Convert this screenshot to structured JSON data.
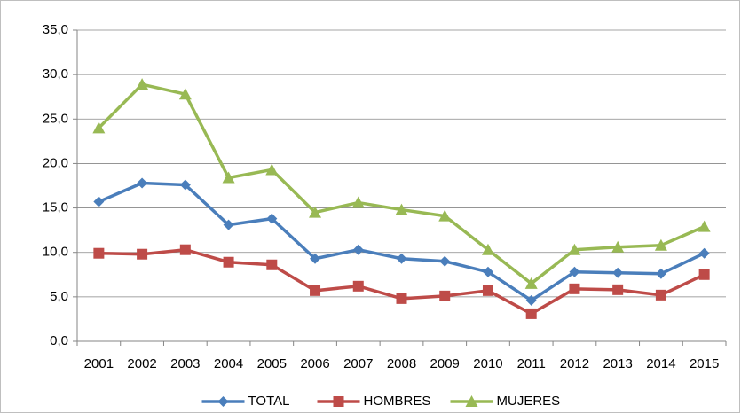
{
  "chart_data": {
    "type": "line",
    "categories": [
      "2001",
      "2002",
      "2003",
      "2004",
      "2005",
      "2006",
      "2007",
      "2008",
      "2009",
      "2010",
      "2011",
      "2012",
      "2013",
      "2014",
      "2015"
    ],
    "series": [
      {
        "name": "TOTAL",
        "color": "#4a7ebb",
        "marker": "diamond",
        "values": [
          15.7,
          17.8,
          17.6,
          13.1,
          13.8,
          9.3,
          10.3,
          9.3,
          9.0,
          7.8,
          4.6,
          7.8,
          7.7,
          7.6,
          9.9
        ]
      },
      {
        "name": "HOMBRES",
        "color": "#be4b48",
        "marker": "square",
        "values": [
          9.9,
          9.8,
          10.3,
          8.9,
          8.6,
          5.7,
          6.2,
          4.8,
          5.1,
          5.7,
          3.1,
          5.9,
          5.8,
          5.2,
          7.5
        ]
      },
      {
        "name": "MUJERES",
        "color": "#98b954",
        "marker": "triangle",
        "values": [
          24.0,
          28.9,
          27.8,
          18.4,
          19.3,
          14.5,
          15.6,
          14.8,
          14.1,
          10.3,
          6.5,
          10.3,
          10.6,
          10.8,
          12.9
        ]
      }
    ],
    "ylim": [
      0,
      35
    ],
    "yticks": [
      {
        "value": 0,
        "label": "0,0"
      },
      {
        "value": 5,
        "label": "5,0"
      },
      {
        "value": 10,
        "label": "10,0"
      },
      {
        "value": 15,
        "label": "15,0"
      },
      {
        "value": 20,
        "label": "20,0"
      },
      {
        "value": 25,
        "label": "25,0"
      },
      {
        "value": 30,
        "label": "30,0"
      },
      {
        "value": 35,
        "label": "35,0"
      }
    ],
    "grid": true,
    "legend": "bottom"
  }
}
